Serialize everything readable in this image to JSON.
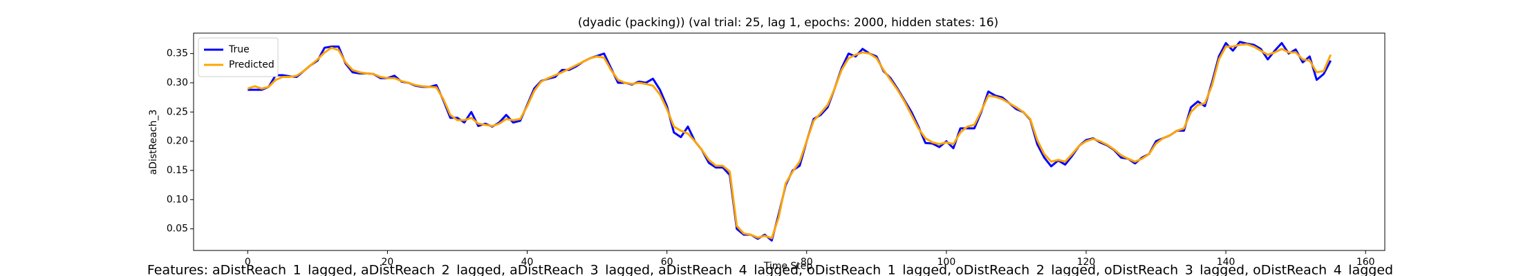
{
  "chart_data": {
    "type": "line",
    "title": "(dyadic (packing)) (val trial: 25, lag 1, epochs: 2000, hidden states: 16)",
    "x_label": "Time Step",
    "y_label": "aDistReach_3",
    "caption": "Features: aDistReach_1_lagged, aDistReach_2_lagged, aDistReach_3_lagged, aDistReach_4_lagged, oDistReach_1_lagged, oDistReach_2_lagged, oDistReach_3_lagged, oDistReach_4_lagged",
    "x": [
      0,
      1,
      2,
      3,
      4,
      5,
      6,
      7,
      8,
      9,
      10,
      11,
      12,
      13,
      14,
      15,
      16,
      17,
      18,
      19,
      20,
      21,
      22,
      23,
      24,
      25,
      26,
      27,
      28,
      29,
      30,
      31,
      32,
      33,
      34,
      35,
      36,
      37,
      38,
      39,
      40,
      41,
      42,
      43,
      44,
      45,
      46,
      47,
      48,
      49,
      50,
      51,
      52,
      53,
      54,
      55,
      56,
      57,
      58,
      59,
      60,
      61,
      62,
      63,
      64,
      65,
      66,
      67,
      68,
      69,
      70,
      71,
      72,
      73,
      74,
      75,
      76,
      77,
      78,
      79,
      80,
      81,
      82,
      83,
      84,
      85,
      86,
      87,
      88,
      89,
      90,
      91,
      92,
      93,
      94,
      95,
      96,
      97,
      98,
      99,
      100,
      101,
      102,
      103,
      104,
      105,
      106,
      107,
      108,
      109,
      110,
      111,
      112,
      113,
      114,
      115,
      116,
      117,
      118,
      119,
      120,
      121,
      122,
      123,
      124,
      125,
      126,
      127,
      128,
      129,
      130,
      131,
      132,
      133,
      134,
      135,
      136,
      137,
      138,
      139,
      140,
      141,
      142,
      143,
      144,
      145,
      146,
      147,
      148,
      149,
      150,
      151,
      152,
      153,
      154,
      155
    ],
    "series": [
      {
        "name": "True",
        "color": "#0000ff",
        "values": [
          0.288,
          0.288,
          0.288,
          0.293,
          0.313,
          0.313,
          0.311,
          0.31,
          0.32,
          0.33,
          0.338,
          0.36,
          0.362,
          0.362,
          0.333,
          0.318,
          0.316,
          0.316,
          0.315,
          0.308,
          0.308,
          0.312,
          0.302,
          0.3,
          0.295,
          0.293,
          0.293,
          0.296,
          0.27,
          0.24,
          0.24,
          0.232,
          0.25,
          0.226,
          0.23,
          0.225,
          0.232,
          0.245,
          0.232,
          0.235,
          0.262,
          0.29,
          0.303,
          0.307,
          0.31,
          0.322,
          0.322,
          0.328,
          0.336,
          0.342,
          0.346,
          0.35,
          0.325,
          0.3,
          0.3,
          0.297,
          0.302,
          0.3,
          0.307,
          0.288,
          0.26,
          0.215,
          0.207,
          0.225,
          0.2,
          0.185,
          0.163,
          0.155,
          0.155,
          0.142,
          0.05,
          0.04,
          0.04,
          0.033,
          0.04,
          0.03,
          0.075,
          0.125,
          0.15,
          0.158,
          0.2,
          0.238,
          0.245,
          0.258,
          0.29,
          0.325,
          0.35,
          0.345,
          0.358,
          0.35,
          0.345,
          0.32,
          0.308,
          0.29,
          0.27,
          0.25,
          0.225,
          0.197,
          0.196,
          0.19,
          0.2,
          0.188,
          0.222,
          0.222,
          0.222,
          0.25,
          0.285,
          0.278,
          0.275,
          0.265,
          0.255,
          0.25,
          0.237,
          0.195,
          0.172,
          0.157,
          0.167,
          0.16,
          0.175,
          0.192,
          0.202,
          0.205,
          0.198,
          0.193,
          0.185,
          0.172,
          0.17,
          0.162,
          0.172,
          0.178,
          0.2,
          0.205,
          0.21,
          0.218,
          0.218,
          0.258,
          0.268,
          0.26,
          0.3,
          0.345,
          0.368,
          0.355,
          0.37,
          0.367,
          0.365,
          0.358,
          0.34,
          0.355,
          0.368,
          0.35,
          0.357,
          0.335,
          0.345,
          0.305,
          0.315,
          0.338
        ]
      },
      {
        "name": "Predicted",
        "color": "#ffa500",
        "values": [
          0.29,
          0.294,
          0.29,
          0.293,
          0.305,
          0.31,
          0.31,
          0.312,
          0.32,
          0.33,
          0.34,
          0.352,
          0.36,
          0.356,
          0.335,
          0.322,
          0.318,
          0.316,
          0.315,
          0.31,
          0.308,
          0.308,
          0.303,
          0.3,
          0.296,
          0.294,
          0.293,
          0.292,
          0.272,
          0.245,
          0.236,
          0.236,
          0.24,
          0.23,
          0.228,
          0.226,
          0.23,
          0.238,
          0.236,
          0.238,
          0.26,
          0.286,
          0.302,
          0.308,
          0.313,
          0.318,
          0.324,
          0.33,
          0.336,
          0.342,
          0.345,
          0.343,
          0.322,
          0.305,
          0.3,
          0.298,
          0.3,
          0.298,
          0.295,
          0.28,
          0.255,
          0.225,
          0.218,
          0.213,
          0.2,
          0.185,
          0.168,
          0.158,
          0.158,
          0.148,
          0.055,
          0.042,
          0.04,
          0.035,
          0.038,
          0.034,
          0.07,
          0.128,
          0.148,
          0.165,
          0.2,
          0.235,
          0.248,
          0.262,
          0.29,
          0.322,
          0.342,
          0.348,
          0.352,
          0.35,
          0.342,
          0.322,
          0.305,
          0.288,
          0.268,
          0.245,
          0.222,
          0.205,
          0.198,
          0.195,
          0.198,
          0.195,
          0.215,
          0.225,
          0.228,
          0.252,
          0.278,
          0.276,
          0.272,
          0.265,
          0.258,
          0.25,
          0.238,
          0.202,
          0.178,
          0.165,
          0.168,
          0.165,
          0.178,
          0.192,
          0.2,
          0.204,
          0.2,
          0.194,
          0.186,
          0.176,
          0.17,
          0.165,
          0.17,
          0.178,
          0.196,
          0.205,
          0.21,
          0.218,
          0.222,
          0.25,
          0.262,
          0.265,
          0.295,
          0.34,
          0.362,
          0.362,
          0.365,
          0.366,
          0.362,
          0.355,
          0.348,
          0.352,
          0.358,
          0.352,
          0.352,
          0.34,
          0.338,
          0.318,
          0.32,
          0.348
        ]
      }
    ],
    "xlim": [
      -7.75,
      162.75
    ],
    "ylim": [
      0.013,
      0.385
    ],
    "xticks": [
      0,
      20,
      40,
      60,
      80,
      100,
      120,
      140,
      160
    ],
    "yticks": [
      0.05,
      {
        "value": 0.1,
        "label": "0.10"
      },
      0.15,
      {
        "value": 0.2,
        "label": "0.20"
      },
      0.25,
      {
        "value": 0.3,
        "label": "0.30"
      },
      0.35
    ],
    "legend": "upper left"
  }
}
